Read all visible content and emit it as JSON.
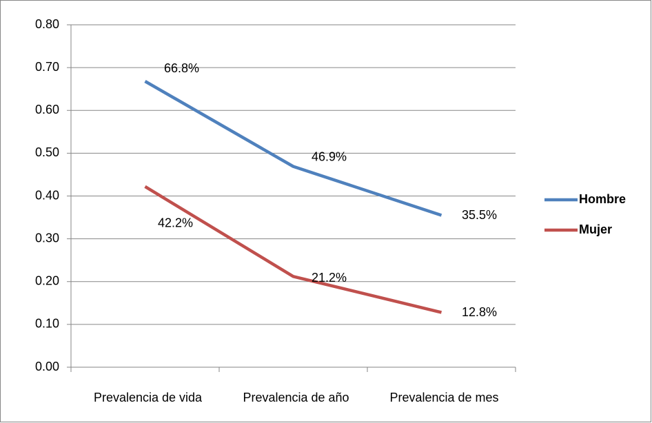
{
  "chart_data": {
    "type": "line",
    "categories": [
      "Prevalencia de vida",
      "Prevalencia de año",
      "Prevalencia de mes"
    ],
    "series": [
      {
        "name": "Hombre",
        "color": "#4f81bd",
        "values": [
          0.668,
          0.469,
          0.355
        ],
        "value_labels": [
          "66.8%",
          "46.9%",
          "35.5%"
        ]
      },
      {
        "name": "Mujer",
        "color": "#c0504d",
        "values": [
          0.422,
          0.212,
          0.128
        ],
        "value_labels": [
          "42.2%",
          "21.2%",
          "12.8%"
        ]
      }
    ],
    "ylim": [
      0,
      0.8
    ],
    "yticks": [
      {
        "value": 0,
        "label": "0.00"
      },
      {
        "value": 0.1,
        "label": "0.10"
      },
      {
        "value": 0.2,
        "label": "0.20"
      },
      {
        "value": 0.3,
        "label": "0.30"
      },
      {
        "value": 0.4,
        "label": "0.40"
      },
      {
        "value": 0.5,
        "label": "0.50"
      },
      {
        "value": 0.6,
        "label": "0.60"
      },
      {
        "value": 0.7,
        "label": "0.70"
      },
      {
        "value": 0.8,
        "label": "0.80"
      }
    ],
    "grid": true,
    "legend": "right"
  }
}
